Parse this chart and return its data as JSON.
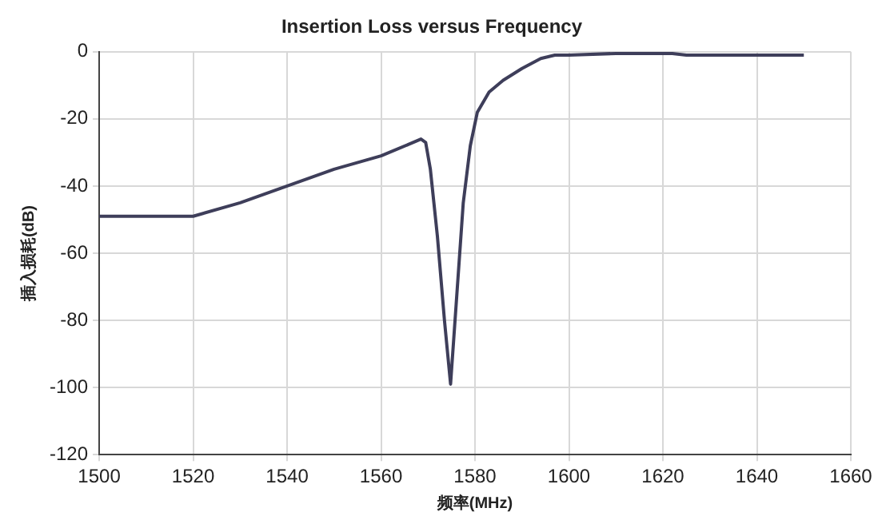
{
  "chart_data": {
    "type": "line",
    "title": "Insertion Loss versus Frequency",
    "xlabel": "频率(MHz)",
    "ylabel": "插入损耗(dB)",
    "x": [
      1500,
      1520,
      1530,
      1540,
      1550,
      1560,
      1566,
      1568.5,
      1569.5,
      1570.5,
      1572,
      1573.5,
      1574.8,
      1576,
      1577.5,
      1579,
      1580.5,
      1583,
      1586,
      1590,
      1594,
      1597,
      1600,
      1610,
      1622,
      1625,
      1650
    ],
    "series": [
      {
        "color": "#3e3e5a",
        "values": [
          -49,
          -49,
          -45,
          -40,
          -35,
          -31,
          -27.5,
          -26,
          -27,
          -35,
          -55,
          -80,
          -99,
          -75,
          -45,
          -28,
          -18,
          -12,
          -8.5,
          -5,
          -2,
          -1,
          -1,
          -0.5,
          -0.5,
          -1,
          -1
        ]
      }
    ],
    "xlim": [
      1500,
      1660
    ],
    "xticks": [
      1500,
      1520,
      1540,
      1560,
      1580,
      1600,
      1620,
      1640,
      1660
    ],
    "ylim": [
      -120,
      0
    ],
    "yticks": [
      -120,
      -100,
      -80,
      -60,
      -40,
      -20,
      0
    ],
    "grid": true,
    "legend": false,
    "marker": "none",
    "line_style": "solid"
  }
}
